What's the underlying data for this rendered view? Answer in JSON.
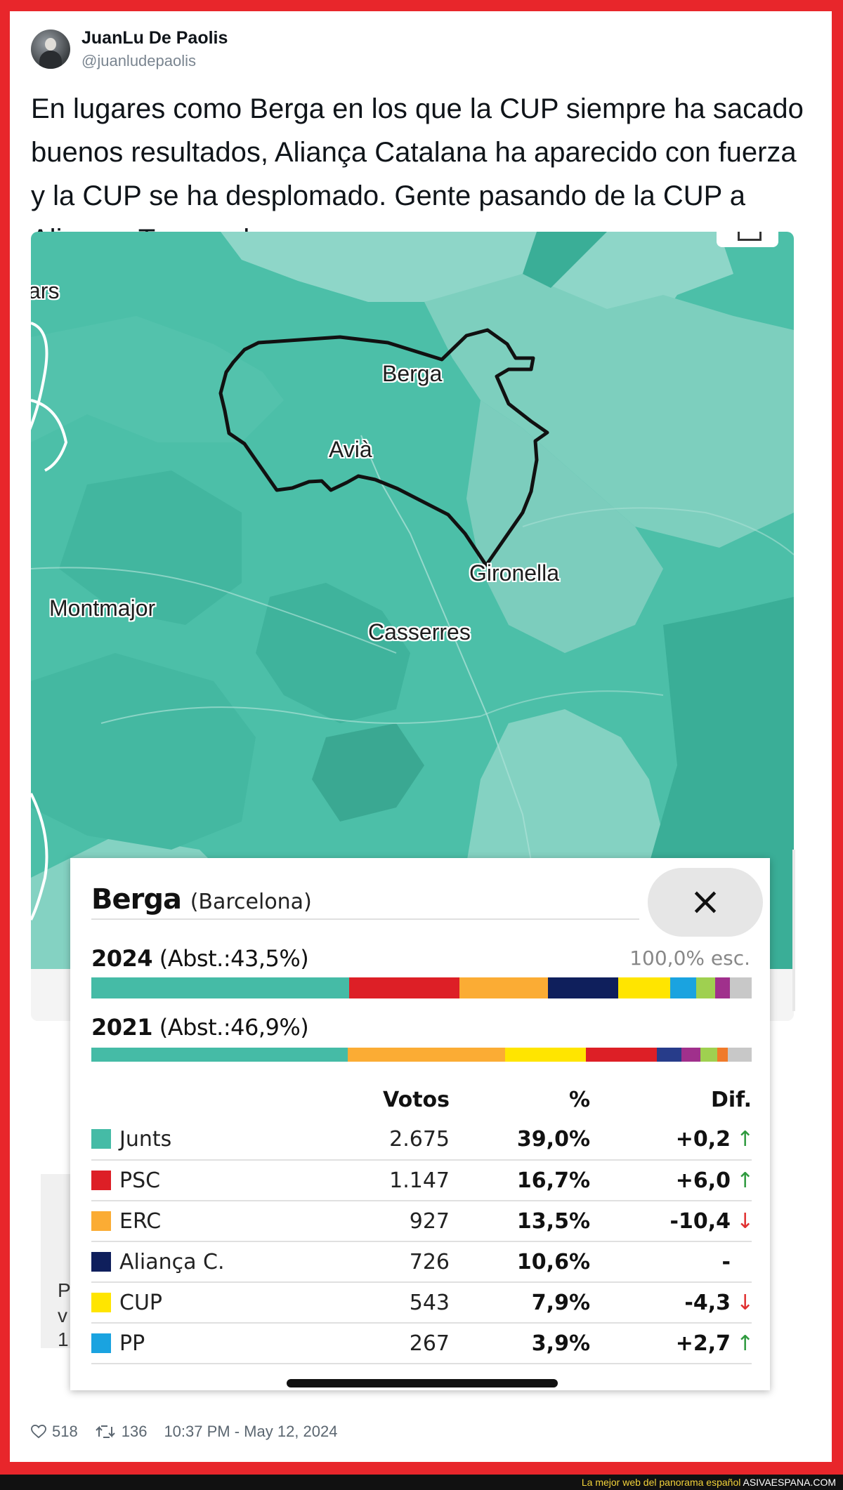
{
  "tweet": {
    "author_name": "JuanLu De Paolis",
    "author_handle": "@juanludepaolis",
    "text": "En lugares como Berga en los que la CUP siempre ha sacado buenos resultados, Aliança Catalana ha aparecido con fuerza y la CUP se ha desplomado. Gente pasando de la CUP a Aliança. Tremendo.",
    "likes": "518",
    "retweets": "136",
    "timestamp": "10:37 PM - May 12, 2024"
  },
  "map": {
    "places": [
      "Berga",
      "Avià",
      "Gironella",
      "Montmajor",
      "Casserres",
      "ars"
    ],
    "colors": {
      "base": "#4cbfa8",
      "light": "#8ed6c8",
      "dark": "#3aae97",
      "outline": "#111111"
    }
  },
  "panel": {
    "municipality": "Berga",
    "province": "(Barcelona)",
    "close_label": "×",
    "row_2024": {
      "year": "2024",
      "abst": "(Abst.:43,5%)",
      "scrutiny": "100,0% esc."
    },
    "row_2021": {
      "year": "2021",
      "abst": "(Abst.:46,9%)"
    },
    "bar_2024": [
      {
        "party": "Junts",
        "pct": 39.0,
        "color": "#45bba6"
      },
      {
        "party": "PSC",
        "pct": 16.7,
        "color": "#dd1f26"
      },
      {
        "party": "ERC",
        "pct": 13.5,
        "color": "#fbac34"
      },
      {
        "party": "Aliança C.",
        "pct": 10.6,
        "color": "#0f1f5c"
      },
      {
        "party": "CUP",
        "pct": 7.9,
        "color": "#ffe500"
      },
      {
        "party": "PP",
        "pct": 3.9,
        "color": "#1aa3e0"
      },
      {
        "party": "other1",
        "pct": 2.9,
        "color": "#9fd050"
      },
      {
        "party": "other2",
        "pct": 2.2,
        "color": "#a0308c"
      },
      {
        "party": "other3",
        "pct": 3.3,
        "color": "#c8c8c8"
      }
    ],
    "bar_2021": [
      {
        "party": "Junts",
        "pct": 38.8,
        "color": "#45bba6"
      },
      {
        "party": "ERC",
        "pct": 23.9,
        "color": "#fbac34"
      },
      {
        "party": "CUP",
        "pct": 12.2,
        "color": "#ffe500"
      },
      {
        "party": "PSC",
        "pct": 10.7,
        "color": "#dd1f26"
      },
      {
        "party": "other1",
        "pct": 3.8,
        "color": "#273c8a"
      },
      {
        "party": "other2",
        "pct": 2.8,
        "color": "#a0308c"
      },
      {
        "party": "other3",
        "pct": 2.6,
        "color": "#9fd050"
      },
      {
        "party": "other4",
        "pct": 1.6,
        "color": "#f07a2a"
      },
      {
        "party": "other5",
        "pct": 3.6,
        "color": "#c8c8c8"
      }
    ],
    "columns": {
      "votes": "Votos",
      "pct": "%",
      "dif": "Dif."
    },
    "rows": [
      {
        "party": "Junts",
        "color": "#45bba6",
        "votes": "2.675",
        "pct": "39,0%",
        "dif": "+0,2",
        "trend": "up"
      },
      {
        "party": "PSC",
        "color": "#dd1f26",
        "votes": "1.147",
        "pct": "16,7%",
        "dif": "+6,0",
        "trend": "up"
      },
      {
        "party": "ERC",
        "color": "#fbac34",
        "votes": "927",
        "pct": "13,5%",
        "dif": "-10,4",
        "trend": "down"
      },
      {
        "party": "Aliança C.",
        "color": "#0f1f5c",
        "votes": "726",
        "pct": "10,6%",
        "dif": "-",
        "trend": "none"
      },
      {
        "party": "CUP",
        "color": "#ffe500",
        "votes": "543",
        "pct": "7,9%",
        "dif": "-4,3",
        "trend": "down"
      },
      {
        "party": "PP",
        "color": "#1aa3e0",
        "votes": "267",
        "pct": "3,9%",
        "dif": "+2,7",
        "trend": "up"
      }
    ]
  },
  "icons": {
    "up": "↑",
    "down": "↓",
    "up_color": "#2e9a3e",
    "down_color": "#e03030"
  },
  "watermark": {
    "tagline": "La mejor web del panorama español",
    "site": "ASIVAESPANA.COM"
  }
}
